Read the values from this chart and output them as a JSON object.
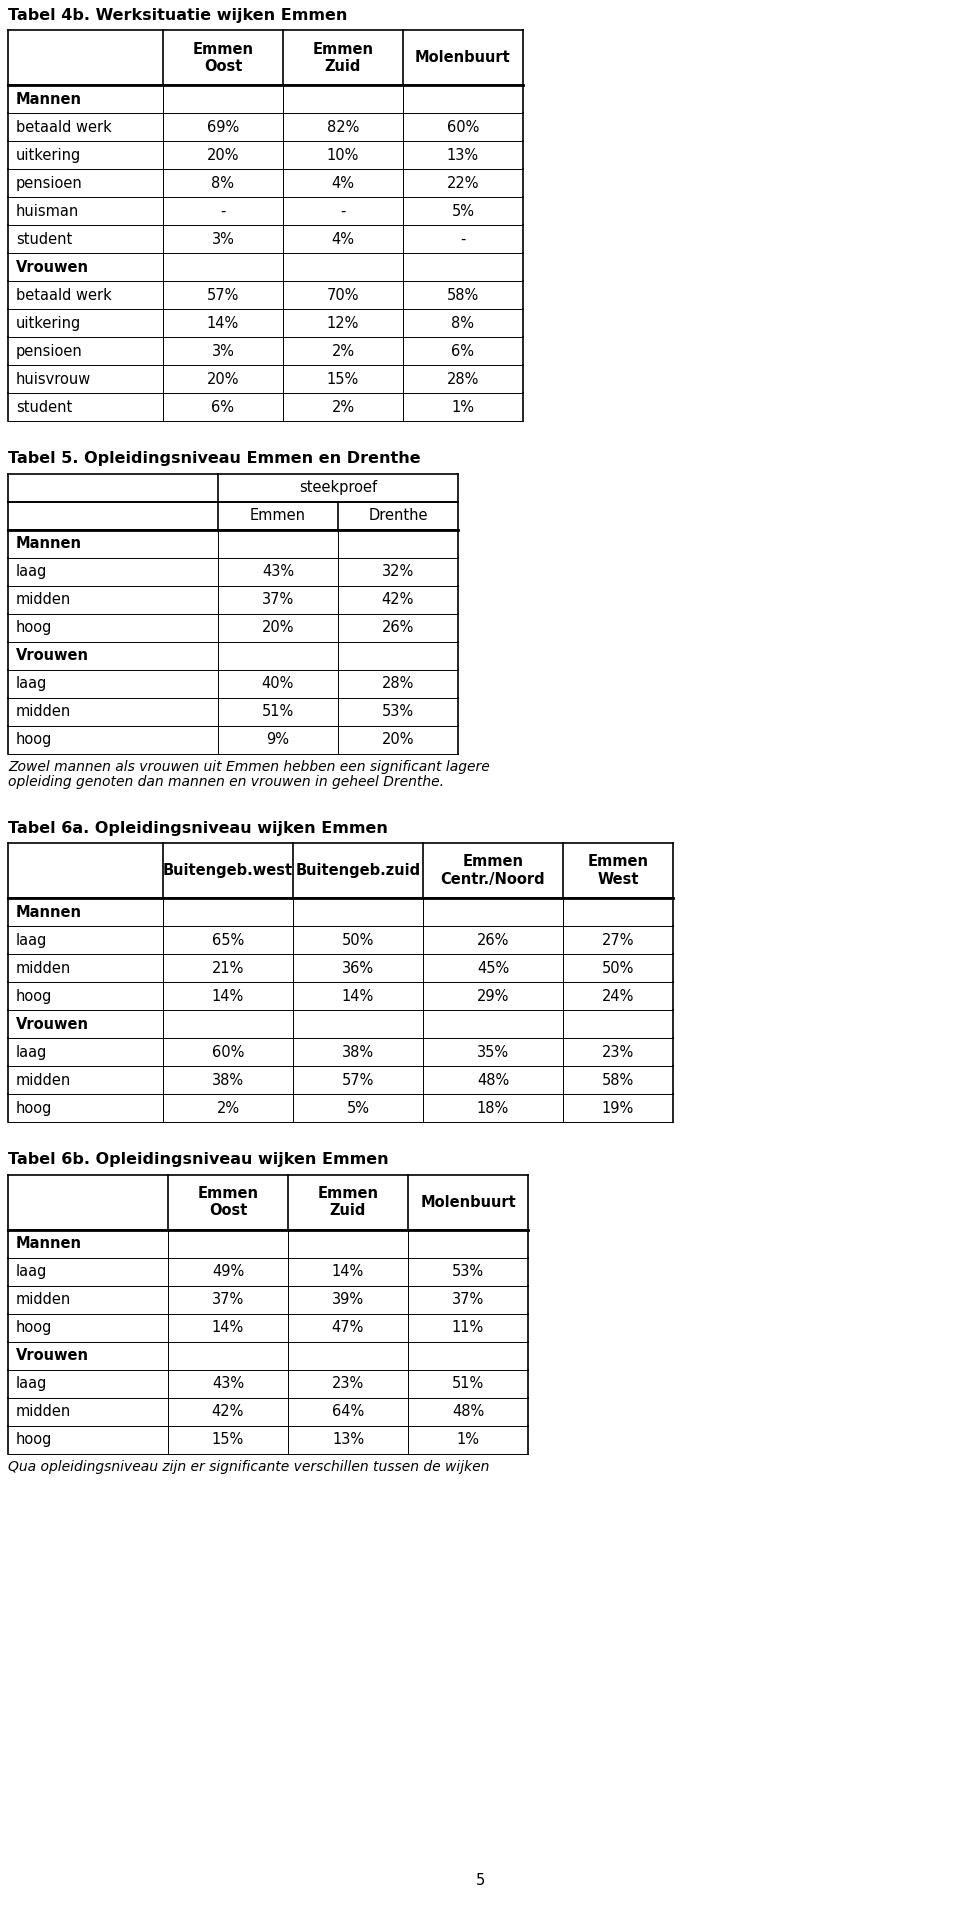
{
  "table4b_title": "Tabel 4b. Werksituatie wijken Emmen",
  "table4b_headers": [
    "",
    "Emmen\nOost",
    "Emmen\nZuid",
    "Molenbuurt"
  ],
  "table4b_rows": [
    [
      "Mannen",
      "",
      "",
      ""
    ],
    [
      "betaald werk",
      "69%",
      "82%",
      "60%"
    ],
    [
      "uitkering",
      "20%",
      "10%",
      "13%"
    ],
    [
      "pensioen",
      "8%",
      "4%",
      "22%"
    ],
    [
      "huisman",
      "-",
      "-",
      "5%"
    ],
    [
      "student",
      "3%",
      "4%",
      "-"
    ],
    [
      "Vrouwen",
      "",
      "",
      ""
    ],
    [
      "betaald werk",
      "57%",
      "70%",
      "58%"
    ],
    [
      "uitkering",
      "14%",
      "12%",
      "8%"
    ],
    [
      "pensioen",
      "3%",
      "2%",
      "6%"
    ],
    [
      "huisvrouw",
      "20%",
      "15%",
      "28%"
    ],
    [
      "student",
      "6%",
      "2%",
      "1%"
    ]
  ],
  "table4b_bold_rows": [
    0,
    6
  ],
  "table5_title": "Tabel 5. Opleidingsniveau Emmen en Drenthe",
  "table5_superheader": "steekproef",
  "table5_headers": [
    "",
    "Emmen",
    "Drenthe"
  ],
  "table5_rows": [
    [
      "Mannen",
      "",
      ""
    ],
    [
      "laag",
      "43%",
      "32%"
    ],
    [
      "midden",
      "37%",
      "42%"
    ],
    [
      "hoog",
      "20%",
      "26%"
    ],
    [
      "Vrouwen",
      "",
      ""
    ],
    [
      "laag",
      "40%",
      "28%"
    ],
    [
      "midden",
      "51%",
      "53%"
    ],
    [
      "hoog",
      "9%",
      "20%"
    ]
  ],
  "table5_bold_rows": [
    0,
    4
  ],
  "table5_note": "Zowel mannen als vrouwen uit Emmen hebben een significant lagere\nopleiding genoten dan mannen en vrouwen in geheel Drenthe.",
  "table6a_title": "Tabel 6a. Opleidingsniveau wijken Emmen",
  "table6a_headers": [
    "",
    "Buitengeb.west",
    "Buitengeb.zuid",
    "Emmen\nCentr./Noord",
    "Emmen\nWest"
  ],
  "table6a_rows": [
    [
      "Mannen",
      "",
      "",
      "",
      ""
    ],
    [
      "laag",
      "65%",
      "50%",
      "26%",
      "27%"
    ],
    [
      "midden",
      "21%",
      "36%",
      "45%",
      "50%"
    ],
    [
      "hoog",
      "14%",
      "14%",
      "29%",
      "24%"
    ],
    [
      "Vrouwen",
      "",
      "",
      "",
      ""
    ],
    [
      "laag",
      "60%",
      "38%",
      "35%",
      "23%"
    ],
    [
      "midden",
      "38%",
      "57%",
      "48%",
      "58%"
    ],
    [
      "hoog",
      "2%",
      "5%",
      "18%",
      "19%"
    ]
  ],
  "table6a_bold_rows": [
    0,
    4
  ],
  "table6b_title": "Tabel 6b. Opleidingsniveau wijken Emmen",
  "table6b_headers": [
    "",
    "Emmen\nOost",
    "Emmen\nZuid",
    "Molenbuurt"
  ],
  "table6b_rows": [
    [
      "Mannen",
      "",
      "",
      ""
    ],
    [
      "laag",
      "49%",
      "14%",
      "53%"
    ],
    [
      "midden",
      "37%",
      "39%",
      "37%"
    ],
    [
      "hoog",
      "14%",
      "47%",
      "11%"
    ],
    [
      "Vrouwen",
      "",
      "",
      ""
    ],
    [
      "laag",
      "43%",
      "23%",
      "51%"
    ],
    [
      "midden",
      "42%",
      "64%",
      "48%"
    ],
    [
      "hoog",
      "15%",
      "13%",
      "1%"
    ]
  ],
  "table6b_bold_rows": [
    0,
    4
  ],
  "table6b_note": "Qua opleidingsniveau zijn er significante verschillen tussen de wijken",
  "page_number": "5",
  "bg_color": "#ffffff",
  "font_size": 10.5,
  "title_font_size": 11.5,
  "note_font_size": 10.0
}
